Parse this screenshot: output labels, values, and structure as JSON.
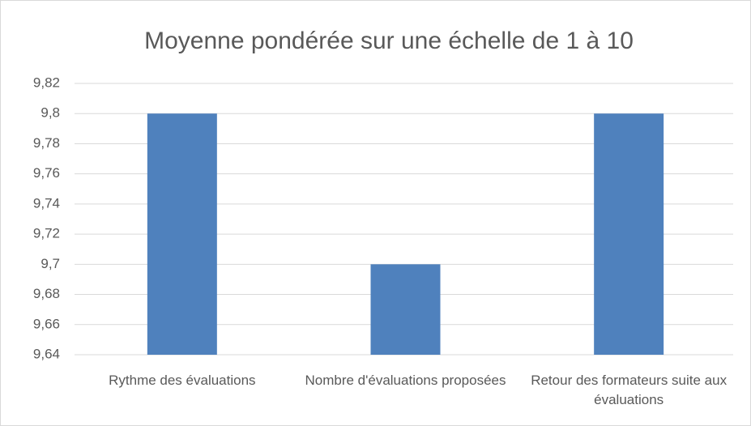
{
  "chart_data": {
    "type": "bar",
    "title": "Moyenne pondérée sur une échelle de 1 à 10",
    "categories": [
      "Rythme des évaluations",
      "Nombre d'évaluations proposées",
      "Retour des formateurs suite aux évaluations"
    ],
    "values": [
      9.8,
      9.7,
      9.8
    ],
    "color": "#4f81bd",
    "ylim": [
      9.64,
      9.82
    ],
    "yticks": [
      {
        "value": 9.64,
        "label": "9,64"
      },
      {
        "value": 9.66,
        "label": "9,66"
      },
      {
        "value": 9.68,
        "label": "9,68"
      },
      {
        "value": 9.7,
        "label": "9,7"
      },
      {
        "value": 9.72,
        "label": "9,72"
      },
      {
        "value": 9.74,
        "label": "9,74"
      },
      {
        "value": 9.76,
        "label": "9,76"
      },
      {
        "value": 9.78,
        "label": "9,78"
      },
      {
        "value": 9.8,
        "label": "9,8"
      },
      {
        "value": 9.82,
        "label": "9,82"
      }
    ],
    "grid": true
  }
}
